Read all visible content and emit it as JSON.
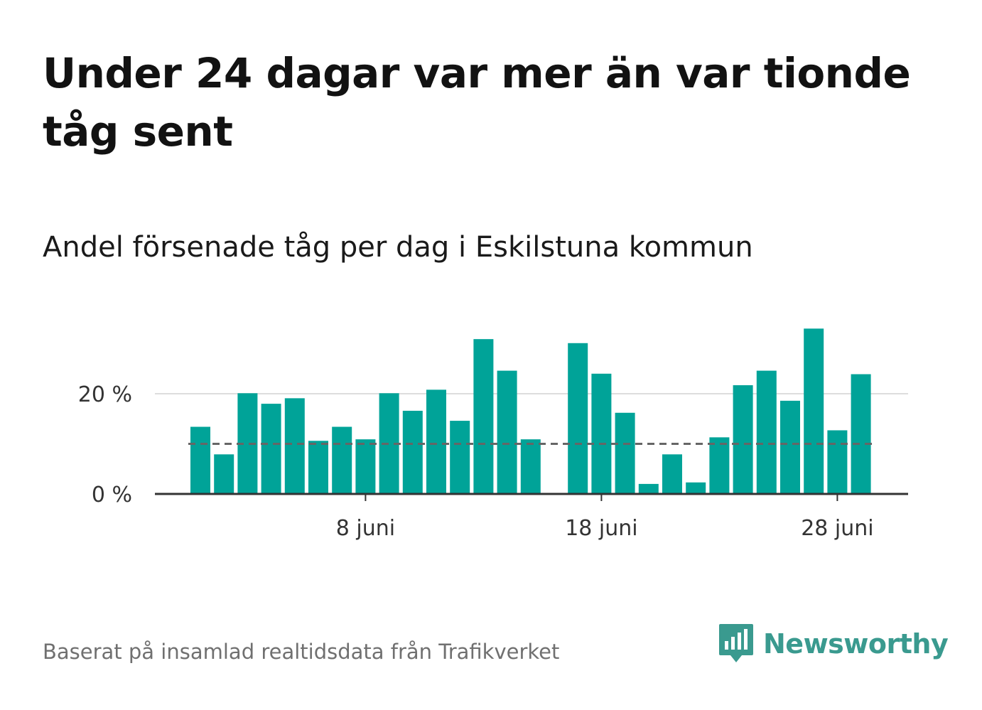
{
  "headline": "Under 24 dagar var mer än var tionde tåg sent",
  "subtitle": "Andel försenade tåg per dag i Eskilstuna kommun",
  "source": "Baserat på insamlad realtidsdata från Trafikverket",
  "brand": {
    "name": "Newsworthy",
    "icon": "newsworthy-logo-icon",
    "color": "#3a9a8f"
  },
  "colors": {
    "bar": "#00a398",
    "reference_line": "#666666",
    "grid": "#dddddd",
    "axis": "#333333"
  },
  "chart_data": {
    "type": "bar",
    "title": "Andel försenade tåg per dag i Eskilstuna kommun",
    "xlabel": "",
    "ylabel": "",
    "x": [
      "1 juni",
      "2 juni",
      "3 juni",
      "4 juni",
      "5 juni",
      "6 juni",
      "7 juni",
      "8 juni",
      "9 juni",
      "10 juni",
      "11 juni",
      "12 juni",
      "13 juni",
      "14 juni",
      "15 juni",
      "16 juni",
      "17 juni",
      "18 juni",
      "19 juni",
      "20 juni",
      "21 juni",
      "22 juni",
      "23 juni",
      "24 juni",
      "25 juni",
      "26 juni",
      "27 juni",
      "28 juni",
      "29 juni"
    ],
    "values": [
      13.4,
      7.9,
      20.1,
      18.0,
      19.1,
      10.6,
      13.4,
      10.9,
      20.1,
      16.6,
      20.8,
      14.6,
      30.9,
      24.6,
      10.9,
      null,
      30.1,
      24.0,
      16.2,
      2.0,
      7.9,
      2.3,
      11.3,
      21.7,
      24.6,
      18.6,
      33.0,
      12.7,
      23.9
    ],
    "reference_line": 10,
    "ylim": [
      0,
      35
    ],
    "yticks": [
      0,
      20
    ],
    "ytick_labels": [
      "0 %",
      "20 %"
    ],
    "xticks": [
      "8 juni",
      "18 juni",
      "28 juni"
    ],
    "xtick_labels": [
      "8 juni",
      "18 juni",
      "28 juni"
    ],
    "grid": true,
    "legend": "none"
  }
}
